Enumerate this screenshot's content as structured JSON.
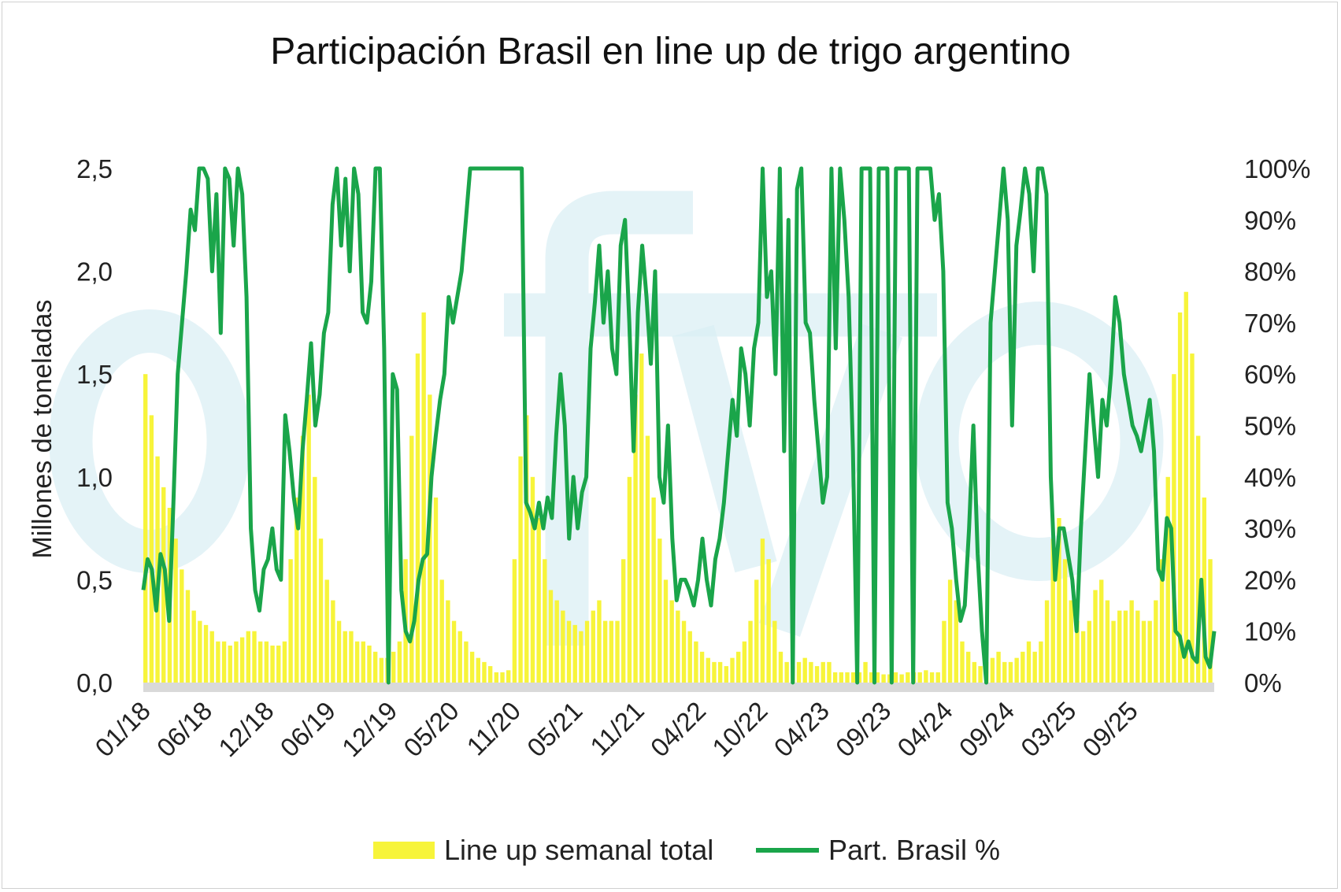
{
  "title": "Participación Brasil en line up de trigo argentino",
  "colors": {
    "bars": "#f7f43a",
    "line": "#1aa54a",
    "watermark": "#d9eef3",
    "baseline": "#d9d9d9"
  },
  "chart_data": {
    "type": "bar+line",
    "title": "Participación Brasil en line up de trigo argentino",
    "ylabel": "Millones de toneladas",
    "ylim": [
      0,
      2.5
    ],
    "y2lim": [
      0,
      100
    ],
    "yticks": [
      "0,0",
      "0,5",
      "1,0",
      "1,5",
      "2,0",
      "2,5"
    ],
    "y2ticks": [
      "0%",
      "10%",
      "20%",
      "30%",
      "40%",
      "50%",
      "60%",
      "70%",
      "80%",
      "90%",
      "100%"
    ],
    "xticks": [
      "01/18",
      "06/18",
      "12/18",
      "06/19",
      "12/19",
      "05/20",
      "11/20",
      "05/21",
      "11/21",
      "04/22",
      "10/22",
      "04/23",
      "09/23",
      "04/24",
      "09/24",
      "03/25",
      "09/25"
    ],
    "legend_position": "bottom",
    "series": [
      {
        "name": "Line up semanal total",
        "type": "bar",
        "axis": "left",
        "values": [
          1.5,
          1.3,
          1.1,
          0.95,
          0.85,
          0.7,
          0.55,
          0.45,
          0.35,
          0.3,
          0.28,
          0.25,
          0.2,
          0.2,
          0.18,
          0.2,
          0.22,
          0.25,
          0.25,
          0.2,
          0.2,
          0.18,
          0.18,
          0.2,
          0.6,
          0.9,
          1.2,
          1.4,
          1.0,
          0.7,
          0.5,
          0.4,
          0.3,
          0.25,
          0.25,
          0.2,
          0.2,
          0.18,
          0.15,
          0.12,
          0.12,
          0.15,
          0.2,
          0.6,
          1.2,
          1.6,
          1.8,
          1.4,
          0.9,
          0.5,
          0.4,
          0.3,
          0.25,
          0.2,
          0.15,
          0.12,
          0.1,
          0.08,
          0.05,
          0.05,
          0.06,
          0.6,
          1.1,
          1.3,
          1.0,
          0.8,
          0.6,
          0.45,
          0.4,
          0.35,
          0.3,
          0.28,
          0.25,
          0.3,
          0.35,
          0.4,
          0.3,
          0.3,
          0.3,
          0.6,
          1.0,
          1.4,
          1.6,
          1.2,
          0.9,
          0.7,
          0.5,
          0.4,
          0.35,
          0.3,
          0.25,
          0.2,
          0.15,
          0.12,
          0.1,
          0.1,
          0.08,
          0.12,
          0.15,
          0.2,
          0.3,
          0.5,
          0.7,
          0.6,
          0.3,
          0.15,
          0.1,
          0.08,
          0.1,
          0.12,
          0.1,
          0.08,
          0.1,
          0.1,
          0.05,
          0.05,
          0.05,
          0.05,
          0.05,
          0.1,
          0.05,
          0.05,
          0.04,
          0.04,
          0.05,
          0.04,
          0.05,
          0.05,
          0.05,
          0.06,
          0.05,
          0.05,
          0.3,
          0.5,
          0.4,
          0.2,
          0.15,
          0.1,
          0.08,
          0.1,
          0.12,
          0.15,
          0.1,
          0.1,
          0.12,
          0.15,
          0.2,
          0.15,
          0.2,
          0.4,
          0.7,
          0.8,
          0.6,
          0.4,
          0.3,
          0.25,
          0.3,
          0.45,
          0.5,
          0.4,
          0.3,
          0.35,
          0.35,
          0.4,
          0.35,
          0.3,
          0.3,
          0.4,
          0.6,
          1.0,
          1.5,
          1.8,
          1.9,
          1.6,
          1.2,
          0.9,
          0.6
        ]
      },
      {
        "name": "Part. Brasil %",
        "type": "line",
        "axis": "right",
        "values": [
          18,
          24,
          22,
          14,
          25,
          22,
          12,
          35,
          60,
          70,
          80,
          92,
          88,
          100,
          100,
          98,
          80,
          95,
          68,
          100,
          98,
          85,
          100,
          95,
          75,
          30,
          18,
          14,
          22,
          24,
          30,
          22,
          20,
          52,
          45,
          36,
          30,
          45,
          55,
          66,
          50,
          56,
          68,
          72,
          93,
          100,
          85,
          98,
          80,
          100,
          95,
          72,
          70,
          78,
          100,
          100,
          65,
          0,
          60,
          57,
          18,
          10,
          8,
          12,
          20,
          24,
          25,
          40,
          48,
          55,
          60,
          75,
          70,
          75,
          80,
          90,
          100,
          100,
          100,
          100,
          100,
          100,
          100,
          100,
          100,
          100,
          100,
          100,
          100,
          35,
          33,
          30,
          35,
          30,
          36,
          32,
          48,
          60,
          50,
          28,
          40,
          30,
          37,
          40,
          65,
          74,
          85,
          70,
          80,
          65,
          60,
          85,
          90,
          70,
          45,
          72,
          85,
          75,
          62,
          80,
          40,
          35,
          50,
          28,
          16,
          20,
          20,
          18,
          15,
          20,
          28,
          20,
          15,
          24,
          28,
          35,
          45,
          55,
          48,
          65,
          60,
          50,
          65,
          70,
          100,
          75,
          80,
          60,
          100,
          45,
          90,
          0,
          96,
          100,
          70,
          68,
          55,
          45,
          35,
          40,
          100,
          65,
          100,
          90,
          75,
          45,
          0,
          100,
          100,
          100,
          0,
          100,
          100,
          100,
          0,
          100,
          100,
          100,
          100,
          0,
          100,
          100,
          100,
          100,
          90,
          95,
          80,
          35,
          30,
          20,
          12,
          15,
          30,
          50,
          25,
          10,
          0,
          70,
          80,
          90,
          100,
          90,
          50,
          85,
          92,
          100,
          95,
          80,
          100,
          100,
          95,
          40,
          20,
          30,
          30,
          25,
          20,
          10,
          30,
          45,
          60,
          50,
          40,
          55,
          50,
          60,
          75,
          70,
          60,
          55,
          50,
          48,
          45,
          50,
          55,
          45,
          22,
          20,
          32,
          30,
          10,
          9,
          5,
          8,
          5,
          4,
          20,
          5,
          3,
          10
        ]
      }
    ]
  }
}
